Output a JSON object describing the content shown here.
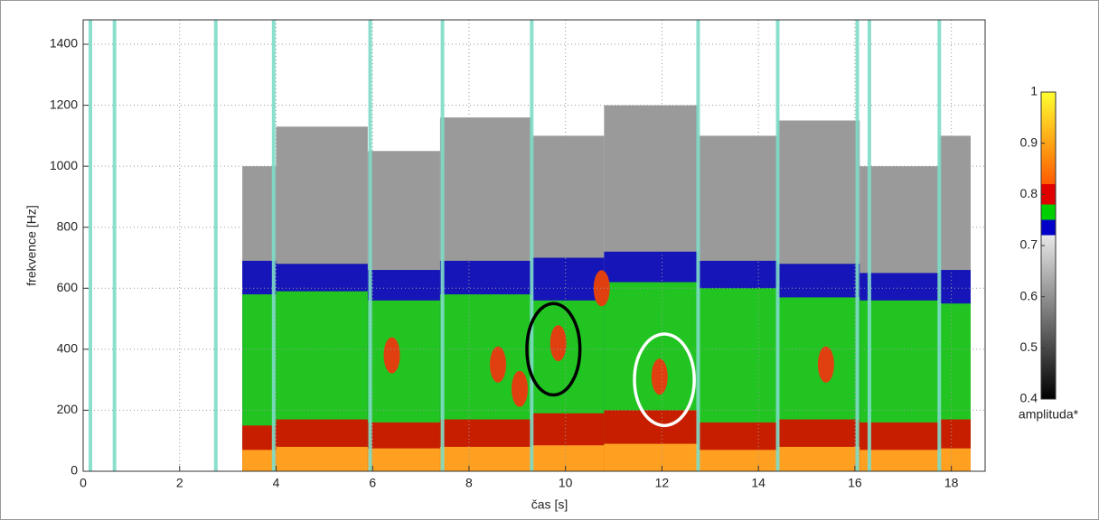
{
  "chart_data": {
    "type": "spectrogram",
    "xlabel": "čas [s]",
    "ylabel": "frekvence [Hz]",
    "xlim": [
      0,
      18.7
    ],
    "ylim": [
      0,
      1480
    ],
    "xticks": [
      0,
      2,
      4,
      6,
      8,
      10,
      12,
      14,
      16,
      18
    ],
    "yticks": [
      0,
      200,
      400,
      600,
      800,
      1000,
      1200,
      1400
    ],
    "grid": true,
    "columns": [
      3.3,
      4.0,
      5.9,
      7.4,
      9.3,
      10.8,
      12.75,
      14.4,
      16.1,
      17.75,
      18.4
    ],
    "layers": [
      {
        "level": 0.7,
        "color": "#9a9a9a",
        "tops": [
          1000,
          1130,
          1050,
          1160,
          1100,
          1200,
          1100,
          1150,
          1000,
          1100
        ]
      },
      {
        "level": 0.74,
        "color": "#1515b8",
        "tops": [
          690,
          680,
          660,
          690,
          700,
          720,
          690,
          680,
          650,
          660
        ]
      },
      {
        "level": 0.77,
        "color": "#22c422",
        "tops": [
          580,
          590,
          560,
          580,
          560,
          620,
          600,
          570,
          560,
          550
        ]
      },
      {
        "level": 0.8,
        "color": "#c81e00",
        "tops": [
          150,
          170,
          160,
          170,
          190,
          200,
          160,
          170,
          160,
          170
        ]
      },
      {
        "level": 0.9,
        "color": "#ffa020",
        "tops": [
          70,
          80,
          75,
          80,
          85,
          90,
          70,
          80,
          70,
          75
        ]
      }
    ],
    "spots": {
      "color": "#e04010",
      "x": [
        6.4,
        8.6,
        9.05,
        9.85,
        11.95,
        15.4,
        10.75
      ],
      "y": [
        380,
        350,
        270,
        420,
        310,
        350,
        600
      ]
    },
    "marker_lines": {
      "color": "#7fdcc8",
      "x": [
        0.15,
        0.65,
        2.75,
        3.95,
        5.95,
        7.45,
        9.3,
        12.75,
        14.4,
        16.05,
        16.3,
        17.75
      ]
    },
    "highlights": [
      {
        "x": 9.75,
        "y": 400,
        "rx": 0.55,
        "ry": 150,
        "color": "#000000"
      },
      {
        "x": 12.05,
        "y": 300,
        "rx": 0.62,
        "ry": 150,
        "color": "#ffffff"
      }
    ],
    "colorbar": {
      "label": "amplituda*",
      "clim": [
        0.4,
        1
      ],
      "ticks": [
        0.4,
        0.5,
        0.6,
        0.7,
        0.8,
        0.9,
        1
      ],
      "stops": [
        {
          "value": 0.4,
          "color": "#000000"
        },
        {
          "value": 0.72,
          "color": "#e8e8e8"
        },
        {
          "value": 0.72,
          "color": "#0000c8"
        },
        {
          "value": 0.75,
          "color": "#0000c8"
        },
        {
          "value": 0.75,
          "color": "#00d000"
        },
        {
          "value": 0.78,
          "color": "#00d000"
        },
        {
          "value": 0.78,
          "color": "#e00000"
        },
        {
          "value": 0.82,
          "color": "#e00000"
        },
        {
          "value": 0.82,
          "color": "#ff5a00"
        },
        {
          "value": 1,
          "color": "#ffff30"
        }
      ]
    }
  }
}
